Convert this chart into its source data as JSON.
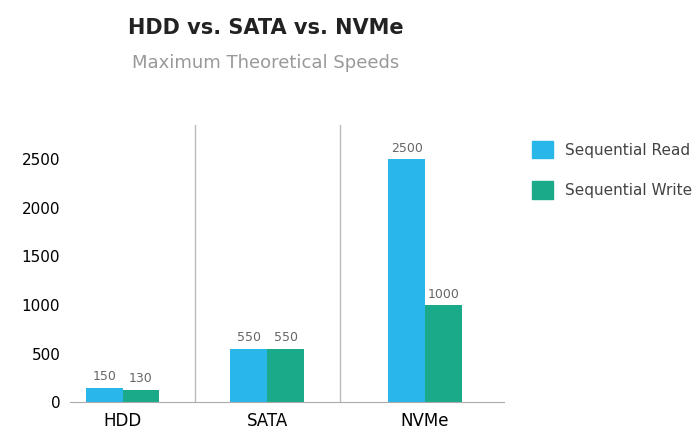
{
  "title": "HDD vs. SATA vs. NVMe",
  "subtitle": "Maximum Theoretical Speeds",
  "categories": [
    "HDD",
    "SATA",
    "NVMe"
  ],
  "read_values": [
    150,
    550,
    2500
  ],
  "write_values": [
    130,
    550,
    1000
  ],
  "read_color": "#29B6E8",
  "write_color": "#1AAA8A",
  "bar_width": 0.28,
  "ylim": [
    0,
    2850
  ],
  "yticks": [
    0,
    500,
    1000,
    1500,
    2000,
    2500
  ],
  "title_fontsize": 15,
  "subtitle_fontsize": 13,
  "subtitle_color": "#999999",
  "tick_label_fontsize": 11,
  "cat_label_fontsize": 12,
  "legend_fontsize": 11,
  "value_label_fontsize": 9,
  "value_label_color": "#666666",
  "background_color": "#ffffff",
  "divider_color": "#bbbbbb",
  "group_centers": [
    0.45,
    1.55,
    2.75
  ]
}
